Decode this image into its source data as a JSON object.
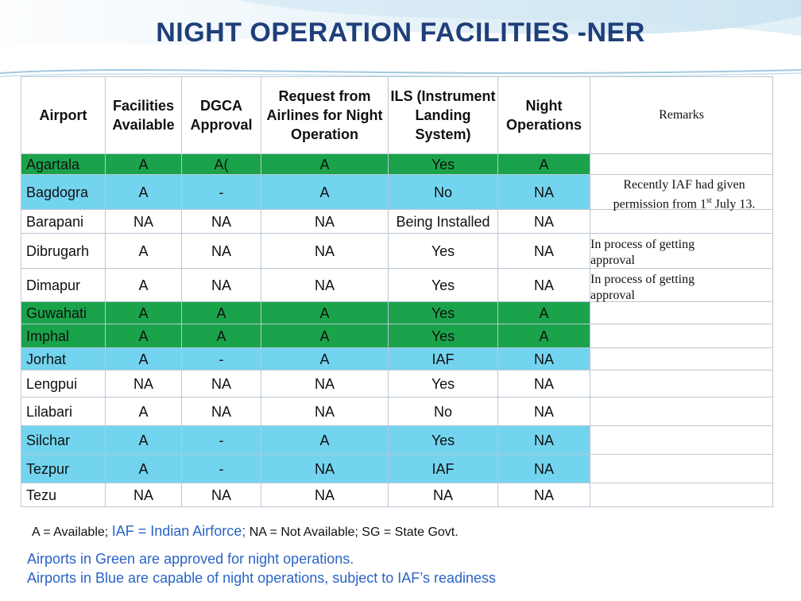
{
  "title": "NIGHT OPERATION FACILITIES -NER",
  "headers": {
    "airport": "Airport",
    "facilities": "Facilities Available",
    "dgca": "DGCA Approval",
    "request": "Request from Airlines for Night Operation",
    "ils": "ILS (Instrument Landing System)",
    "night": "Night Operations",
    "remarks": "Remarks"
  },
  "rows": [
    {
      "airport": "Agartala",
      "fac": "A",
      "dgca": "A(",
      "req": "A",
      "ils": "Yes",
      "night": "A",
      "status": "green"
    },
    {
      "airport": "Bagdogra",
      "fac": "A",
      "dgca": "-",
      "req": "A",
      "ils": "No",
      "night": "NA",
      "status": "blue"
    },
    {
      "airport": "Barapani",
      "fac": "NA",
      "dgca": "NA",
      "req": "NA",
      "ils": "Being Installed",
      "night": "NA",
      "status": "white"
    },
    {
      "airport": "Dibrugarh",
      "fac": "A",
      "dgca": "NA",
      "req": "NA",
      "ils": "Yes",
      "night": "NA",
      "status": "white"
    },
    {
      "airport": "Dimapur",
      "fac": "A",
      "dgca": "NA",
      "req": "NA",
      "ils": "Yes",
      "night": "NA",
      "status": "white"
    },
    {
      "airport": "Guwahati",
      "fac": "A",
      "dgca": "A",
      "req": "A",
      "ils": "Yes",
      "night": "A",
      "status": "green"
    },
    {
      "airport": "Imphal",
      "fac": "A",
      "dgca": "A",
      "req": "A",
      "ils": "Yes",
      "night": "A",
      "status": "green"
    },
    {
      "airport": "Jorhat",
      "fac": "A",
      "dgca": "-",
      "req": "A",
      "ils": "IAF",
      "night": "NA",
      "status": "blue"
    },
    {
      "airport": "Lengpui",
      "fac": "NA",
      "dgca": "NA",
      "req": "NA",
      "ils": "Yes",
      "night": "NA",
      "status": "white"
    },
    {
      "airport": "Lilabari",
      "fac": "A",
      "dgca": "NA",
      "req": "NA",
      "ils": "No",
      "night": "NA",
      "status": "white"
    },
    {
      "airport": "Silchar",
      "fac": "A",
      "dgca": "-",
      "req": "A",
      "ils": "Yes",
      "night": "NA",
      "status": "blue"
    },
    {
      "airport": "Tezpur",
      "fac": "A",
      "dgca": "-",
      "req": "NA",
      "ils": "IAF",
      "night": "NA",
      "status": "blue"
    },
    {
      "airport": "Tezu",
      "fac": "NA",
      "dgca": "NA",
      "req": "NA",
      "ils": "NA",
      "night": "NA",
      "status": "white"
    }
  ],
  "remarks": {
    "bagdogra_1": "Recently IAF had given",
    "bagdogra_2a": "permission from 1",
    "bagdogra_sup": "st",
    "bagdogra_2b": " July 13.",
    "dibrugarh": "In process of getting approval",
    "dimapur": "In process of getting approval"
  },
  "legend": {
    "a": "A = Available;",
    "iaf": "IAF = Indian Airforce;",
    "na_sg": "NA = Not Available; SG = State Govt."
  },
  "notes": {
    "green": "Airports in Green are approved for night operations.",
    "blue": "Airports in Blue are capable of night operations, subject to IAF’s readiness"
  },
  "colors": {
    "green": "#1aa34a",
    "blue": "#73d4ef",
    "title": "#1f3f7a",
    "note": "#2a64c6"
  }
}
